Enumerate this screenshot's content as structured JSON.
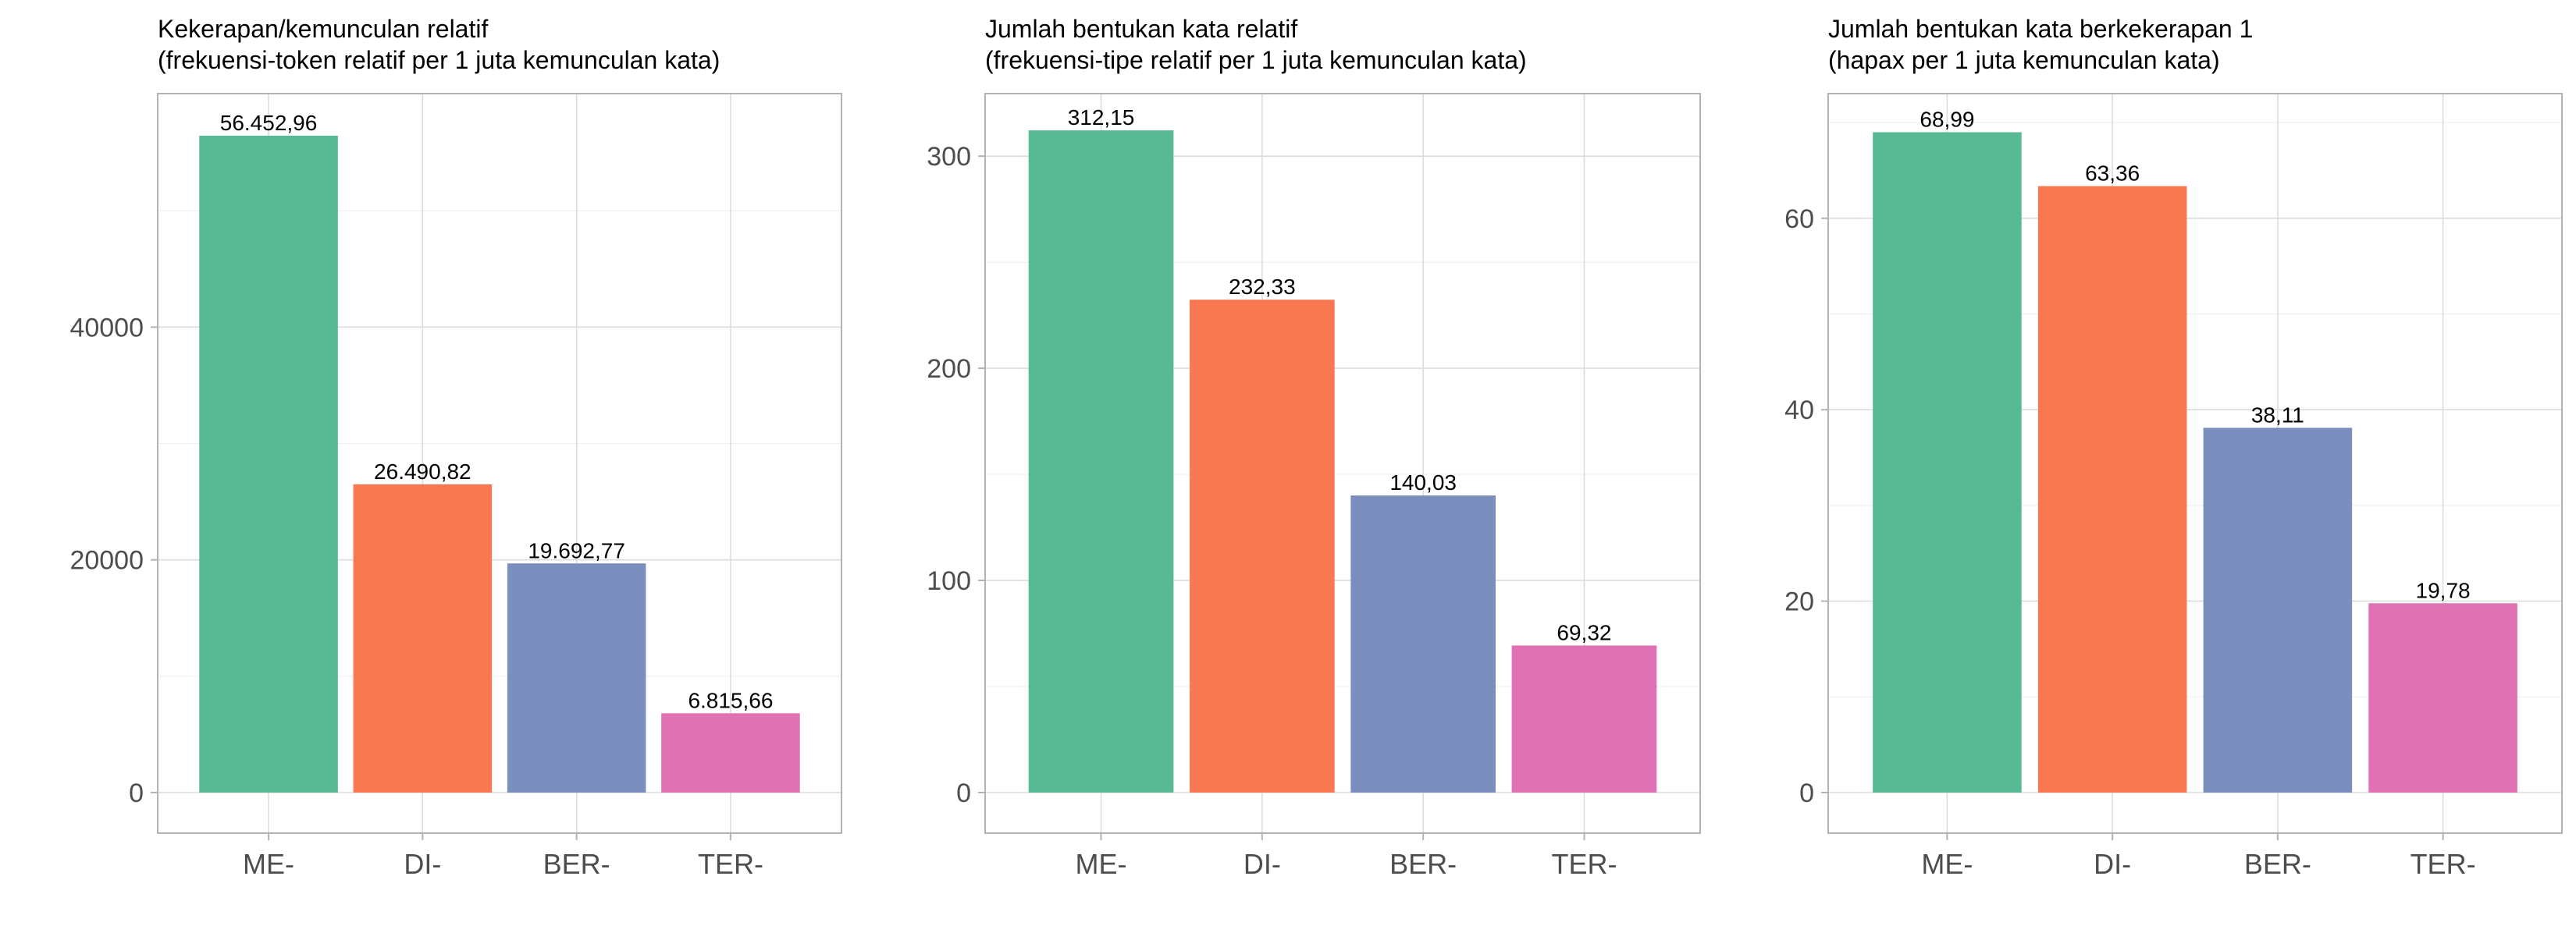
{
  "chart_data": [
    {
      "type": "bar",
      "title": "Kekerapan/kemunculan relatif",
      "subtitle": "(frekuensi-token relatif per 1 juta kemunculan kata)",
      "xlabel": "",
      "ylabel": "",
      "categories": [
        "ME-",
        "DI-",
        "BER-",
        "TER-"
      ],
      "values": [
        56452.96,
        26490.82,
        19692.77,
        6815.66
      ],
      "value_labels": [
        "56.452,96",
        "26.490,82",
        "19.692,77",
        "6.815,66"
      ],
      "ylim": [
        0,
        59800
      ],
      "yticks": [
        0,
        20000,
        40000
      ],
      "ytick_labels": [
        "0",
        "20000",
        "40000"
      ],
      "colors": [
        "#57BA94",
        "#F97851",
        "#7C8EBE",
        "#E072B4"
      ],
      "grid": true,
      "legend": "none"
    },
    {
      "type": "bar",
      "title": "Jumlah bentukan kata relatif",
      "subtitle": "(frekuensi-tipe relatif per 1 juta kemunculan kata)",
      "xlabel": "",
      "ylabel": "",
      "categories": [
        "ME-",
        "DI-",
        "BER-",
        "TER-"
      ],
      "values": [
        312.15,
        232.33,
        140.03,
        69.32
      ],
      "value_labels": [
        "312,15",
        "232,33",
        "140,03",
        "69,32"
      ],
      "ylim": [
        0,
        328
      ],
      "yticks": [
        0,
        100,
        200,
        300
      ],
      "ytick_labels": [
        "0",
        "100",
        "200",
        "300"
      ],
      "colors": [
        "#57BA94",
        "#F97851",
        "#7C8EBE",
        "#E072B4"
      ],
      "grid": true,
      "legend": "none"
    },
    {
      "type": "bar",
      "title": "Jumlah bentukan kata berkekerapan 1",
      "subtitle": "(hapax per 1 juta kemunculan kata)",
      "xlabel": "",
      "ylabel": "",
      "categories": [
        "ME-",
        "DI-",
        "BER-",
        "TER-"
      ],
      "values": [
        68.99,
        63.36,
        38.11,
        19.78
      ],
      "value_labels": [
        "68,99",
        "63,36",
        "38,11",
        "19,78"
      ],
      "ylim": [
        0,
        72.7
      ],
      "yticks": [
        0,
        20,
        40,
        60
      ],
      "ytick_labels": [
        "0",
        "20",
        "40",
        "60"
      ],
      "colors": [
        "#57BA94",
        "#F97851",
        "#7C8EBE",
        "#E072B4"
      ],
      "grid": true,
      "legend": "none"
    }
  ]
}
